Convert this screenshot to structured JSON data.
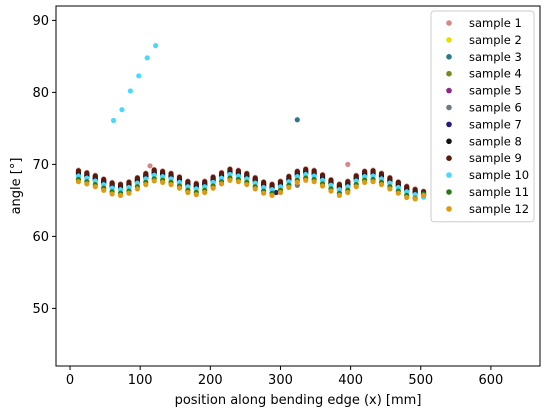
{
  "chart_data": {
    "type": "scatter",
    "title": "",
    "xlabel": "position along bending edge (x) [mm]",
    "ylabel": "angle [°]",
    "xlim": [
      -20,
      670
    ],
    "ylim": [
      42,
      92
    ],
    "xticks": [
      0,
      100,
      200,
      300,
      400,
      500,
      600
    ],
    "yticks": [
      50,
      60,
      70,
      80,
      90
    ],
    "grid": false,
    "legend_position": "top-right",
    "x": [
      12,
      24,
      36,
      48,
      60,
      72,
      84,
      96,
      108,
      120,
      132,
      144,
      156,
      168,
      180,
      192,
      204,
      216,
      228,
      240,
      252,
      264,
      276,
      288,
      300,
      312,
      324,
      336,
      348,
      360,
      372,
      384,
      396,
      408,
      420,
      432,
      444,
      456,
      468,
      480,
      492,
      504
    ],
    "series": [
      {
        "name": "sample 1",
        "color": "#d4888a",
        "y": [
          69.2,
          68.9,
          68.5,
          68.0,
          67.5,
          67.3,
          67.6,
          68.2,
          68.8,
          69.3,
          69.1,
          68.8,
          68.3,
          67.7,
          67.4,
          67.7,
          68.3,
          68.9,
          69.4,
          69.2,
          68.8,
          68.2,
          67.6,
          67.3,
          67.7,
          68.4,
          69.1,
          69.4,
          69.2,
          68.6,
          67.9,
          67.3,
          67.7,
          68.5,
          69.1,
          69.2,
          68.8,
          68.2,
          67.6,
          67.0,
          66.6,
          66.3
        ],
        "outliers": [
          [
            114,
            69.8
          ],
          [
            396,
            70.0
          ],
          [
            132,
            68.6
          ]
        ]
      },
      {
        "name": "sample 2",
        "color": "#e8df00",
        "y": [
          68.3,
          68.0,
          67.6,
          67.1,
          66.6,
          66.4,
          66.7,
          67.3,
          67.9,
          68.4,
          68.2,
          67.9,
          67.4,
          66.8,
          66.5,
          66.8,
          67.4,
          68.0,
          68.5,
          68.3,
          67.9,
          67.3,
          66.7,
          66.4,
          66.8,
          67.5,
          68.2,
          68.5,
          68.3,
          67.7,
          67.0,
          66.4,
          66.8,
          67.6,
          68.2,
          68.3,
          67.9,
          67.3,
          66.7,
          66.1,
          65.7,
          65.4
        ]
      },
      {
        "name": "sample 3",
        "color": "#2a7a8a",
        "y": [
          68.8,
          68.5,
          68.1,
          67.6,
          67.1,
          66.9,
          67.2,
          67.8,
          68.4,
          68.9,
          68.7,
          68.4,
          67.9,
          67.3,
          67.0,
          67.3,
          67.9,
          68.5,
          69.0,
          68.8,
          68.4,
          67.8,
          67.2,
          66.9,
          67.3,
          68.0,
          68.7,
          69.0,
          68.8,
          68.2,
          67.5,
          66.9,
          67.3,
          68.1,
          68.7,
          68.8,
          68.4,
          67.8,
          67.2,
          66.6,
          66.2,
          65.9
        ],
        "outliers": [
          [
            324,
            76.2
          ]
        ]
      },
      {
        "name": "sample 4",
        "color": "#7a8a1a",
        "y": [
          68.5,
          68.2,
          67.8,
          67.3,
          66.8,
          66.6,
          66.9,
          67.5,
          68.1,
          68.6,
          68.4,
          68.1,
          67.6,
          67.0,
          66.7,
          67.0,
          67.6,
          68.2,
          68.7,
          68.5,
          68.1,
          67.5,
          66.9,
          66.6,
          67.0,
          67.7,
          68.4,
          68.7,
          68.5,
          67.9,
          67.2,
          66.6,
          67.0,
          67.8,
          68.4,
          68.5,
          68.1,
          67.5,
          66.9,
          66.3,
          65.9,
          65.6
        ]
      },
      {
        "name": "sample 5",
        "color": "#8b2a8b",
        "y": [
          69.0,
          68.7,
          68.3,
          67.8,
          67.3,
          67.1,
          67.4,
          68.0,
          68.6,
          69.1,
          68.9,
          68.6,
          68.1,
          67.5,
          67.2,
          67.5,
          68.1,
          68.7,
          69.2,
          69.0,
          68.6,
          68.0,
          67.4,
          67.1,
          67.5,
          68.2,
          68.9,
          69.2,
          69.0,
          68.4,
          67.7,
          67.1,
          67.5,
          68.3,
          68.9,
          69.0,
          68.6,
          68.0,
          67.4,
          66.8,
          66.4,
          66.1
        ]
      },
      {
        "name": "sample 6",
        "color": "#6a7a8a",
        "y": [
          68.6,
          68.3,
          67.9,
          67.4,
          66.9,
          66.7,
          67.0,
          67.6,
          68.2,
          68.7,
          68.5,
          68.2,
          67.7,
          67.1,
          66.8,
          67.1,
          67.7,
          68.3,
          68.8,
          68.6,
          68.2,
          67.6,
          67.0,
          66.7,
          67.1,
          67.8,
          68.5,
          68.8,
          68.6,
          68.0,
          67.3,
          66.7,
          67.1,
          67.9,
          68.5,
          68.6,
          68.2,
          67.6,
          67.0,
          66.4,
          66.0,
          65.7
        ],
        "outliers": [
          [
            324,
            67.1
          ]
        ]
      },
      {
        "name": "sample 7",
        "color": "#2a1a7a",
        "y": [
          68.9,
          68.6,
          68.2,
          67.7,
          67.2,
          67.0,
          67.3,
          67.9,
          68.5,
          69.0,
          68.8,
          68.5,
          68.0,
          67.4,
          67.1,
          67.4,
          68.0,
          68.6,
          69.1,
          68.9,
          68.5,
          67.9,
          67.3,
          67.0,
          67.4,
          68.1,
          68.8,
          69.1,
          68.9,
          68.3,
          67.6,
          67.0,
          67.4,
          68.2,
          68.8,
          68.9,
          68.5,
          67.9,
          67.3,
          66.7,
          66.3,
          66.0
        ],
        "outliers": [
          [
            294,
            66.1
          ]
        ]
      },
      {
        "name": "sample 8",
        "color": "#111111",
        "y": [
          68.7,
          68.4,
          68.0,
          67.5,
          67.0,
          66.8,
          67.1,
          67.7,
          68.3,
          68.8,
          68.6,
          68.3,
          67.8,
          67.2,
          66.9,
          67.2,
          67.8,
          68.4,
          68.9,
          68.7,
          68.3,
          67.7,
          67.1,
          66.8,
          67.2,
          67.9,
          68.6,
          68.9,
          68.7,
          68.1,
          67.4,
          66.8,
          67.2,
          68.0,
          68.6,
          68.7,
          68.3,
          67.7,
          67.1,
          66.5,
          66.1,
          65.8
        ]
      },
      {
        "name": "sample 9",
        "color": "#5a1a0a",
        "y": [
          69.1,
          68.8,
          68.4,
          67.9,
          67.4,
          67.2,
          67.5,
          68.1,
          68.7,
          69.2,
          69.0,
          68.7,
          68.2,
          67.6,
          67.3,
          67.6,
          68.2,
          68.8,
          69.3,
          69.1,
          68.7,
          68.1,
          67.5,
          67.2,
          67.6,
          68.3,
          69.0,
          69.3,
          69.1,
          68.5,
          67.8,
          67.2,
          67.6,
          68.4,
          69.0,
          69.1,
          68.7,
          68.1,
          67.5,
          66.9,
          66.5,
          66.2
        ]
      },
      {
        "name": "sample 10",
        "color": "#4ad8ff",
        "y": [
          68.4,
          68.1,
          67.7,
          67.2,
          66.7,
          66.5,
          66.8,
          67.4,
          68.0,
          68.5,
          68.3,
          68.0,
          67.5,
          66.9,
          66.6,
          66.9,
          67.5,
          68.1,
          68.6,
          68.4,
          68.0,
          67.4,
          66.8,
          66.5,
          66.9,
          67.6,
          68.3,
          68.6,
          68.4,
          67.8,
          67.1,
          66.5,
          66.9,
          67.7,
          68.3,
          68.4,
          68.0,
          67.4,
          66.8,
          66.2,
          65.8,
          65.5
        ],
        "outliers": [
          [
            62,
            76.1
          ],
          [
            74,
            77.6
          ],
          [
            86,
            80.2
          ],
          [
            98,
            82.3
          ],
          [
            110,
            84.8
          ],
          [
            122,
            86.5
          ]
        ]
      },
      {
        "name": "sample 11",
        "color": "#2a7a1a",
        "y": [
          67.9,
          67.6,
          67.2,
          66.7,
          66.2,
          66.0,
          66.3,
          66.9,
          67.5,
          68.0,
          67.8,
          67.5,
          67.0,
          66.4,
          66.1,
          66.4,
          67.0,
          67.6,
          68.1,
          67.9,
          67.5,
          66.9,
          66.3,
          66.0,
          66.4,
          67.1,
          67.8,
          68.1,
          67.9,
          67.3,
          66.6,
          66.0,
          66.4,
          67.2,
          67.8,
          67.9,
          67.5,
          66.9,
          66.3,
          65.7,
          65.3,
          65.9
        ]
      },
      {
        "name": "sample 12",
        "color": "#e09a10",
        "y": [
          67.6,
          67.3,
          66.9,
          66.4,
          65.9,
          65.7,
          66.0,
          66.6,
          67.2,
          67.7,
          67.5,
          67.2,
          66.7,
          66.1,
          65.8,
          66.1,
          66.7,
          67.3,
          67.8,
          67.6,
          67.2,
          66.6,
          66.0,
          65.7,
          66.1,
          66.8,
          67.5,
          67.8,
          67.6,
          67.0,
          66.3,
          65.7,
          66.1,
          66.9,
          67.5,
          67.6,
          67.2,
          66.6,
          66.0,
          65.4,
          65.2,
          65.7
        ]
      }
    ]
  }
}
